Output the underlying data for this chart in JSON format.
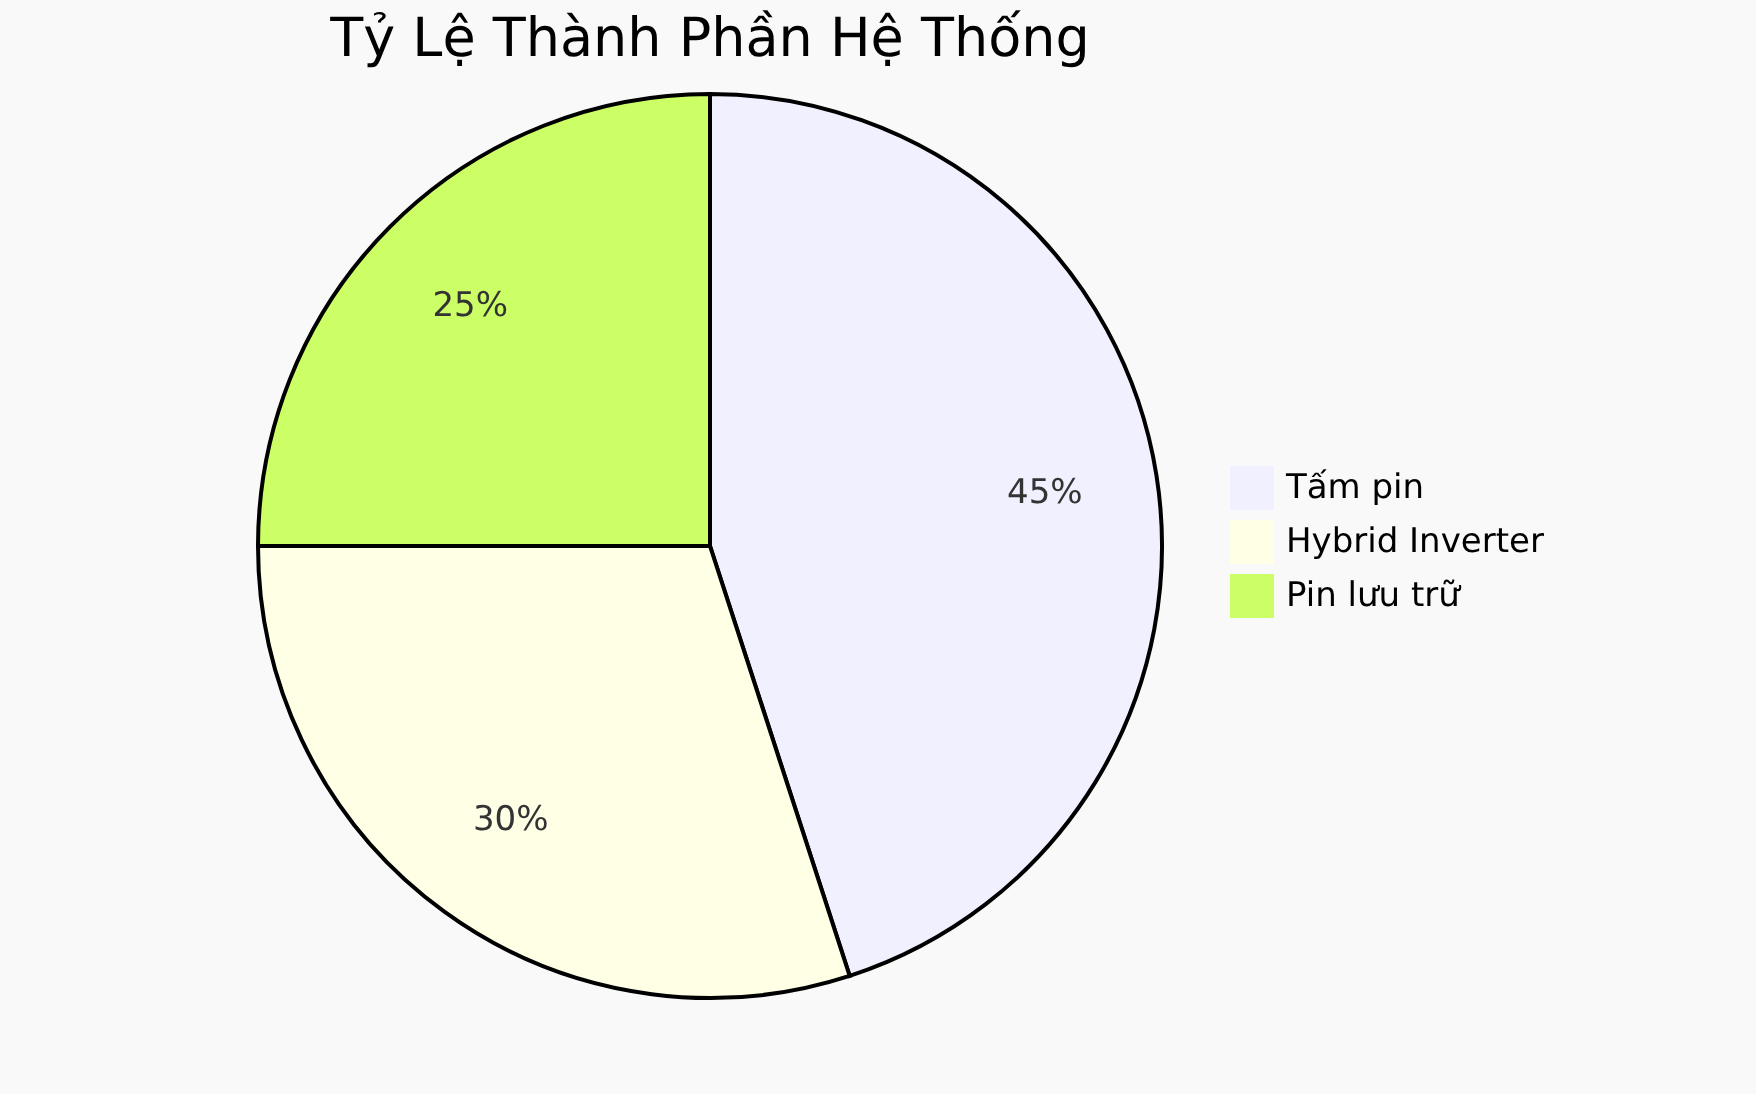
{
  "chart_data": {
    "type": "pie",
    "title": "Tỷ Lệ Thành Phần Hệ Thống",
    "categories": [
      "Tấm pin",
      "Hybrid Inverter",
      "Pin lưu trữ"
    ],
    "values": [
      45,
      30,
      25
    ],
    "value_labels": [
      "45%",
      "30%",
      "25%"
    ],
    "colors": [
      "#f0f0fe",
      "#ffffe5",
      "#ccff66"
    ],
    "legend": "right"
  }
}
